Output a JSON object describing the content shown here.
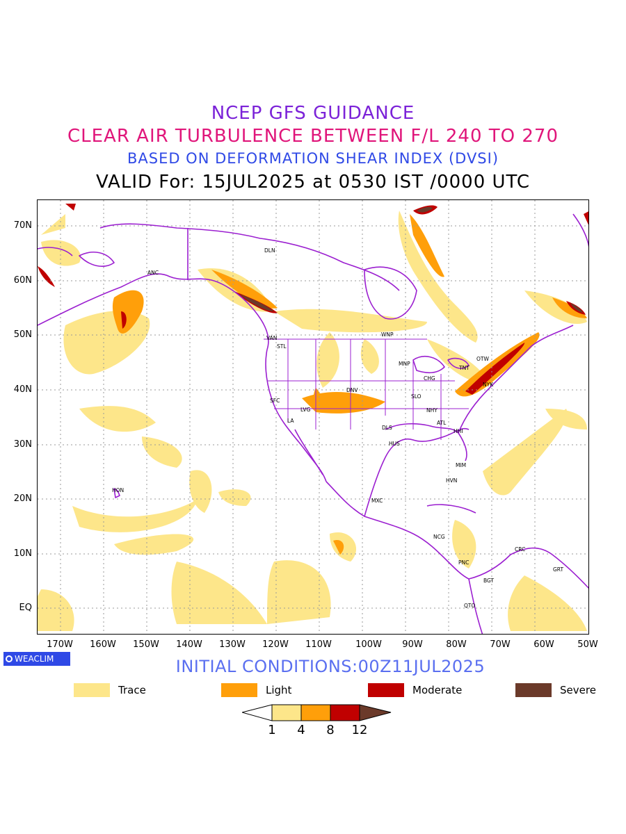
{
  "titles": {
    "line1": "NCEP GFS GUIDANCE",
    "line2": "CLEAR AIR TURBULENCE BETWEEN F/L 240 TO 270",
    "line3": "BASED ON DEFORMATION SHEAR INDEX (DVSI)",
    "line4": "VALID For: 15JUL2025 at 0530 IST /0000 UTC"
  },
  "axes": {
    "lat_labels": [
      "70N",
      "60N",
      "50N",
      "40N",
      "30N",
      "20N",
      "10N",
      "EQ"
    ],
    "lon_labels": [
      "170W",
      "160W",
      "150W",
      "140W",
      "130W",
      "120W",
      "110W",
      "100W",
      "90W",
      "80W",
      "70W",
      "60W",
      "50W"
    ]
  },
  "cities": [
    "ANC",
    "DLN",
    "VAN",
    "STL",
    "WNP",
    "MNP",
    "OTW",
    "TNT",
    "CHG",
    "NYK",
    "DNV",
    "SFC",
    "LVG",
    "LA",
    "SLO",
    "NHY",
    "ATL",
    "DLS",
    "HHI",
    "HUS",
    "MIM",
    "HVN",
    "HON",
    "MXC",
    "NCG",
    "CRC",
    "PNC",
    "GRT",
    "BGT",
    "QTO"
  ],
  "brand": "WEACLIM",
  "initial_conditions": "INITIAL CONDITIONS:00Z11JUL2025",
  "legend": [
    {
      "label": "Trace",
      "color": "#fde68a"
    },
    {
      "label": "Light",
      "color": "#ff9f0a"
    },
    {
      "label": "Moderate",
      "color": "#c00000"
    },
    {
      "label": "Severe",
      "color": "#6b3a2a"
    }
  ],
  "colorbar": {
    "ticks": [
      "1",
      "4",
      "8",
      "12"
    ],
    "colors": [
      "#fde68a",
      "#ff9f0a",
      "#c00000",
      "#6b3a2a"
    ]
  },
  "colors": {
    "boundary": "#9b1fd0",
    "title1": "#7b22d8",
    "title2": "#e0157a",
    "title3": "#2f49e6"
  }
}
